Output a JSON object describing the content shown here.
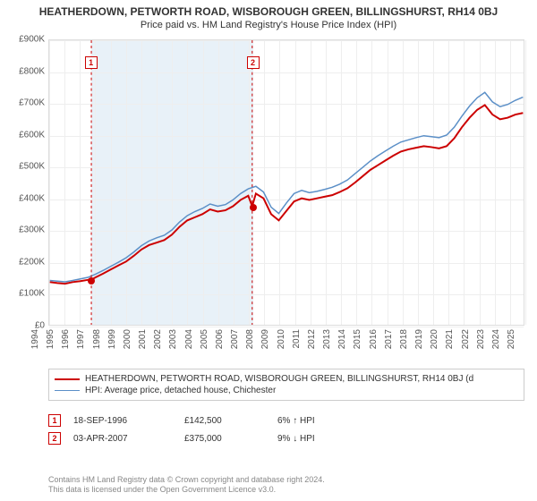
{
  "title": "HEATHERDOWN, PETWORTH ROAD, WISBOROUGH GREEN, BILLINGSHURST, RH14 0BJ",
  "subtitle": "Price paid vs. HM Land Registry's House Price Index (HPI)",
  "chart": {
    "type": "line",
    "background_color": "#ffffff",
    "grid_color": "#eeeeee",
    "shade_color": "#e8f1f8",
    "x_min": 1994,
    "x_max": 2025,
    "y_min": 0,
    "y_max": 900,
    "y_ticks": [
      0,
      100,
      200,
      300,
      400,
      500,
      600,
      700,
      800,
      900
    ],
    "y_tick_prefix": "£",
    "y_tick_suffix": "K",
    "x_ticks": [
      1994,
      1995,
      1996,
      1997,
      1998,
      1999,
      2000,
      2001,
      2002,
      2003,
      2004,
      2005,
      2006,
      2007,
      2008,
      2009,
      2010,
      2011,
      2012,
      2013,
      2014,
      2015,
      2016,
      2017,
      2018,
      2019,
      2020,
      2021,
      2022,
      2023,
      2024,
      2025
    ],
    "shade_start": 1996.72,
    "shade_end": 2007.26,
    "series": [
      {
        "name": "HEATHERDOWN, PETWORTH ROAD, WISBOROUGH GREEN, BILLINGSHURST, RH14 0BJ (d",
        "color": "#cc0000",
        "width": 2,
        "points": [
          [
            1994.0,
            135
          ],
          [
            1994.5,
            132
          ],
          [
            1995.0,
            130
          ],
          [
            1995.5,
            135
          ],
          [
            1996.0,
            138
          ],
          [
            1996.5,
            142
          ],
          [
            1996.72,
            142.5
          ],
          [
            1997.0,
            150
          ],
          [
            1997.5,
            162
          ],
          [
            1998.0,
            175
          ],
          [
            1998.5,
            188
          ],
          [
            1999.0,
            200
          ],
          [
            1999.5,
            218
          ],
          [
            2000.0,
            238
          ],
          [
            2000.5,
            252
          ],
          [
            2001.0,
            260
          ],
          [
            2001.5,
            268
          ],
          [
            2002.0,
            285
          ],
          [
            2002.5,
            310
          ],
          [
            2003.0,
            330
          ],
          [
            2003.5,
            340
          ],
          [
            2004.0,
            350
          ],
          [
            2004.5,
            365
          ],
          [
            2005.0,
            358
          ],
          [
            2005.5,
            362
          ],
          [
            2006.0,
            375
          ],
          [
            2006.5,
            395
          ],
          [
            2007.0,
            408
          ],
          [
            2007.26,
            375
          ],
          [
            2007.5,
            415
          ],
          [
            2008.0,
            400
          ],
          [
            2008.5,
            350
          ],
          [
            2009.0,
            330
          ],
          [
            2009.5,
            360
          ],
          [
            2010.0,
            390
          ],
          [
            2010.5,
            400
          ],
          [
            2011.0,
            395
          ],
          [
            2011.5,
            400
          ],
          [
            2012.0,
            405
          ],
          [
            2012.5,
            410
          ],
          [
            2013.0,
            420
          ],
          [
            2013.5,
            432
          ],
          [
            2014.0,
            450
          ],
          [
            2014.5,
            470
          ],
          [
            2015.0,
            490
          ],
          [
            2015.5,
            505
          ],
          [
            2016.0,
            520
          ],
          [
            2016.5,
            535
          ],
          [
            2017.0,
            548
          ],
          [
            2017.5,
            555
          ],
          [
            2018.0,
            560
          ],
          [
            2018.5,
            565
          ],
          [
            2019.0,
            562
          ],
          [
            2019.5,
            558
          ],
          [
            2020.0,
            565
          ],
          [
            2020.5,
            590
          ],
          [
            2021.0,
            625
          ],
          [
            2021.5,
            655
          ],
          [
            2022.0,
            680
          ],
          [
            2022.5,
            695
          ],
          [
            2023.0,
            665
          ],
          [
            2023.5,
            650
          ],
          [
            2024.0,
            655
          ],
          [
            2024.5,
            665
          ],
          [
            2025.0,
            670
          ]
        ]
      },
      {
        "name": "HPI: Average price, detached house, Chichester",
        "color": "#5b8fc7",
        "width": 1.5,
        "points": [
          [
            1994.0,
            140
          ],
          [
            1994.5,
            138
          ],
          [
            1995.0,
            136
          ],
          [
            1995.5,
            140
          ],
          [
            1996.0,
            145
          ],
          [
            1996.5,
            150
          ],
          [
            1997.0,
            160
          ],
          [
            1997.5,
            172
          ],
          [
            1998.0,
            185
          ],
          [
            1998.5,
            198
          ],
          [
            1999.0,
            212
          ],
          [
            1999.5,
            230
          ],
          [
            2000.0,
            250
          ],
          [
            2000.5,
            265
          ],
          [
            2001.0,
            275
          ],
          [
            2001.5,
            283
          ],
          [
            2002.0,
            300
          ],
          [
            2002.5,
            325
          ],
          [
            2003.0,
            345
          ],
          [
            2003.5,
            358
          ],
          [
            2004.0,
            368
          ],
          [
            2004.5,
            382
          ],
          [
            2005.0,
            375
          ],
          [
            2005.5,
            380
          ],
          [
            2006.0,
            395
          ],
          [
            2006.5,
            415
          ],
          [
            2007.0,
            430
          ],
          [
            2007.5,
            438
          ],
          [
            2008.0,
            420
          ],
          [
            2008.5,
            372
          ],
          [
            2009.0,
            352
          ],
          [
            2009.5,
            385
          ],
          [
            2010.0,
            415
          ],
          [
            2010.5,
            425
          ],
          [
            2011.0,
            418
          ],
          [
            2011.5,
            422
          ],
          [
            2012.0,
            428
          ],
          [
            2012.5,
            435
          ],
          [
            2013.0,
            445
          ],
          [
            2013.5,
            458
          ],
          [
            2014.0,
            478
          ],
          [
            2014.5,
            498
          ],
          [
            2015.0,
            518
          ],
          [
            2015.5,
            535
          ],
          [
            2016.0,
            550
          ],
          [
            2016.5,
            565
          ],
          [
            2017.0,
            578
          ],
          [
            2017.5,
            585
          ],
          [
            2018.0,
            592
          ],
          [
            2018.5,
            598
          ],
          [
            2019.0,
            595
          ],
          [
            2019.5,
            592
          ],
          [
            2020.0,
            600
          ],
          [
            2020.5,
            625
          ],
          [
            2021.0,
            660
          ],
          [
            2021.5,
            692
          ],
          [
            2022.0,
            718
          ],
          [
            2022.5,
            735
          ],
          [
            2023.0,
            705
          ],
          [
            2023.5,
            690
          ],
          [
            2024.0,
            697
          ],
          [
            2024.5,
            710
          ],
          [
            2025.0,
            720
          ]
        ]
      }
    ],
    "markers": [
      {
        "label": "1",
        "x": 1996.72,
        "y": 142.5,
        "box_color": "#cc0000"
      },
      {
        "label": "2",
        "x": 2007.26,
        "y": 375,
        "box_color": "#cc0000"
      }
    ]
  },
  "transactions": [
    {
      "marker": "1",
      "date": "18-SEP-1996",
      "price": "£142,500",
      "pct": "6% ↑ HPI"
    },
    {
      "marker": "2",
      "date": "03-APR-2007",
      "price": "£375,000",
      "pct": "9% ↓ HPI"
    }
  ],
  "footer_line1": "Contains HM Land Registry data © Crown copyright and database right 2024.",
  "footer_line2": "This data is licensed under the Open Government Licence v3.0."
}
